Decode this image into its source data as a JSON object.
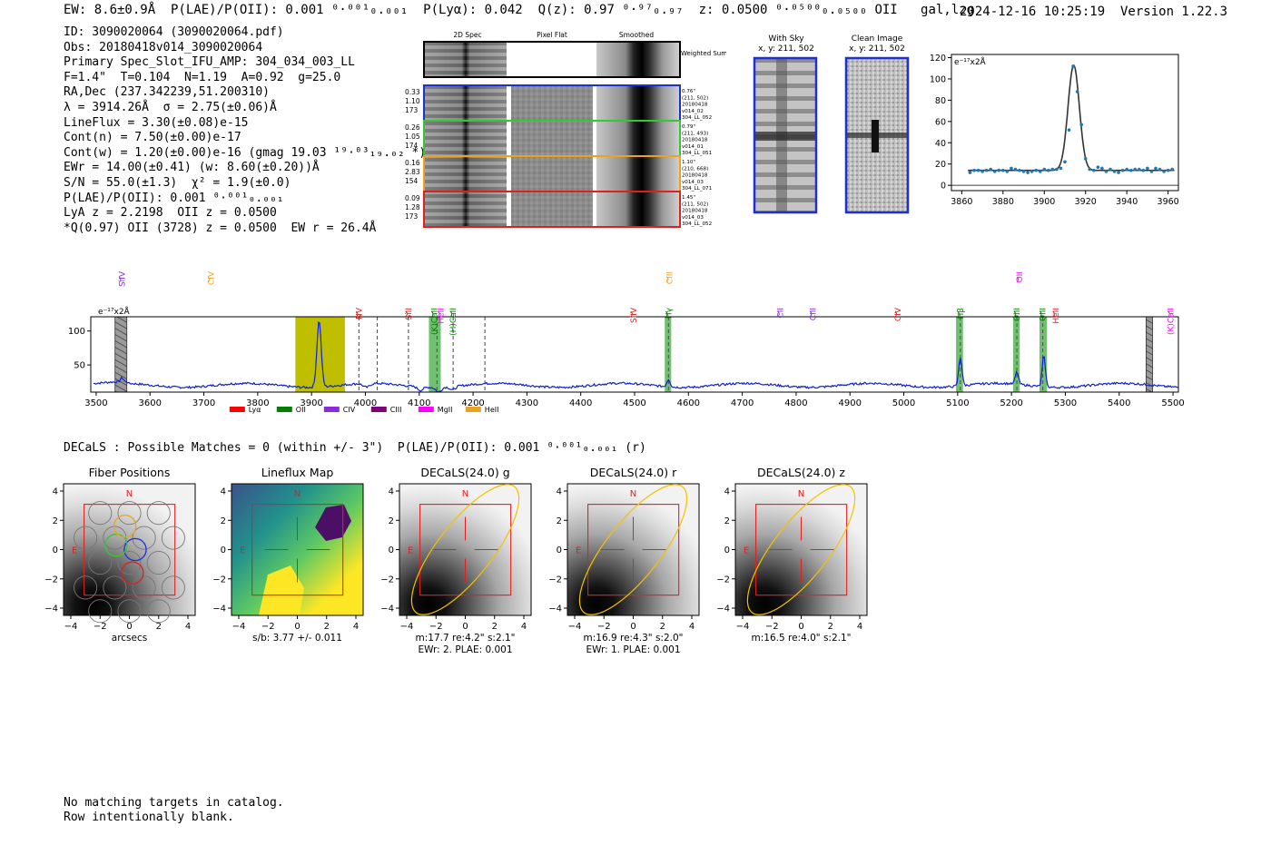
{
  "header": {
    "left": "EW: 8.6±0.9Å  P(LAE)/P(OII): 0.001 ⁰·⁰⁰¹₀.₀₀₁  P(Lyα): 0.042  Q(z): 0.97 ⁰·⁹⁷₀.₉₇  z: 0.0500 ⁰·⁰⁵⁰⁰₀.₀₅₀₀ OII   gal,lzg",
    "right": "2024-12-16 10:25:19  Version 1.22.3"
  },
  "info": [
    "ID: 3090020064 (3090020064.pdf)",
    "Obs: 20180418v014_3090020064",
    "Primary Spec_Slot_IFU_AMP: 304_034_003_LL",
    "F=1.4\"  T=0.104  N=1.19  A=0.92  g=25.0",
    "RA,Dec (237.342239,51.200310)",
    "λ = 3914.26Å  σ = 2.75(±0.06)Å",
    "LineFlux = 3.30(±0.08)e-15",
    "Cont(n) = 7.50(±0.00)e-17",
    "Cont(w) = 1.20(±0.00)e-16 (gmag 19.03 ¹⁹·⁰³₁₉.₀₂ *)",
    "EWr = 14.00(±0.41) (w: 8.60(±0.20))Å",
    "S/N = 55.0(±1.3)  χ² = 1.9(±0.0)",
    "P(LAE)/P(OII): 0.001 ⁰·⁰⁰¹₀.₀₀₁",
    "LyA z = 2.2198  OII z = 0.0500",
    "*Q(0.97) OII (3728) z = 0.0500  EW r = 26.4Å"
  ],
  "cutouts": {
    "col_labels": [
      "2D Spec",
      "Pixel Flat",
      "Smoothed"
    ],
    "weighted_label": "Weighted Sum",
    "rows": [
      {
        "color": "#1f2fd6",
        "left": [
          "0.33",
          "1.10",
          "173"
        ],
        "right": [
          "0.76\"",
          "(211, 502)",
          "20180418",
          "v014_02",
          "304_LL_052"
        ]
      },
      {
        "color": "#34c934",
        "left": [
          "0.26",
          "1.05",
          "174"
        ],
        "right": [
          "0.79\"",
          "(211, 493)",
          "20180418",
          "v014_01",
          "304_LL_051"
        ]
      },
      {
        "color": "#f0a020",
        "left": [
          "0.16",
          "2.83",
          "154"
        ],
        "right": [
          "1.10\"",
          "(210, 668)",
          "20180418",
          "v014_03",
          "304_LL_071"
        ]
      },
      {
        "color": "#e02020",
        "left": [
          "0.09",
          "1.28",
          "173"
        ],
        "right": [
          "1.45\"",
          "(211, 502)",
          "20180418",
          "v014_03",
          "304_LL_052"
        ]
      }
    ],
    "with_sky_title": "With Sky",
    "with_sky_sub": "x, y: 211, 502",
    "clean_title": "Clean Image",
    "clean_sub": "x, y: 211, 502"
  },
  "chart_data": [
    {
      "type": "line",
      "title": "",
      "ylabel_unit": "e⁻¹⁷x2Å",
      "xlim": [
        3855,
        3965
      ],
      "ylim": [
        -5,
        123
      ],
      "xticks": [
        3860,
        3880,
        3900,
        3920,
        3940,
        3960
      ],
      "yticks": [
        0,
        20,
        40,
        60,
        80,
        100,
        120
      ],
      "fit_center": 3914.26,
      "fit_sigma": 2.75,
      "fit_amp": 99,
      "fit_base": 14,
      "points_x": [
        3864,
        3866,
        3868,
        3870,
        3872,
        3874,
        3876,
        3878,
        3880,
        3882,
        3884,
        3886,
        3888,
        3890,
        3892,
        3894,
        3896,
        3898,
        3900,
        3902,
        3904,
        3906,
        3908,
        3910,
        3912,
        3914,
        3916,
        3918,
        3920,
        3922,
        3924,
        3926,
        3928,
        3930,
        3932,
        3934,
        3936,
        3938,
        3940,
        3942,
        3944,
        3946,
        3948,
        3950,
        3952,
        3954,
        3956,
        3958,
        3960,
        3962
      ],
      "points_y": [
        12,
        14,
        14,
        13,
        14,
        15,
        13,
        14,
        14,
        13,
        16,
        15,
        14,
        13,
        12,
        13,
        14,
        13,
        15,
        14,
        15,
        15,
        16,
        22,
        52,
        112,
        88,
        57,
        25,
        15,
        14,
        17,
        16,
        13,
        15,
        13,
        12,
        14,
        15,
        14,
        15,
        15,
        14,
        16,
        13,
        16,
        15,
        13,
        14,
        15
      ]
    },
    {
      "type": "line",
      "title": "",
      "ylabel_unit": "e⁻¹⁷x2Å",
      "xlim": [
        3490,
        5510
      ],
      "ylim": [
        10,
        121
      ],
      "xticks": [
        3500,
        3600,
        3700,
        3800,
        3900,
        4000,
        4100,
        4200,
        4300,
        4400,
        4500,
        4600,
        4700,
        4800,
        4900,
        5000,
        5100,
        5200,
        5300,
        5400,
        5500
      ],
      "yticks": [
        50,
        100
      ],
      "baseline": 20,
      "peaks": [
        {
          "x": 3914,
          "h": 98,
          "w": 4
        },
        {
          "x": 3548,
          "h": 6,
          "w": 3
        },
        {
          "x": 4002,
          "h": -6,
          "w": 6
        },
        {
          "x": 4102,
          "h": -5,
          "w": 5
        },
        {
          "x": 4136,
          "h": -7,
          "w": 5
        },
        {
          "x": 4162,
          "h": -5,
          "w": 5
        },
        {
          "x": 4563,
          "h": 11,
          "w": 3
        },
        {
          "x": 5105,
          "h": 42,
          "w": 3
        },
        {
          "x": 5210,
          "h": 18,
          "w": 3
        },
        {
          "x": 5260,
          "h": 45,
          "w": 3
        }
      ],
      "highlight": {
        "x0": 3870,
        "x1": 3962,
        "color": "#bfbf00"
      },
      "bands": [
        {
          "x0": 4118,
          "x1": 4140,
          "color": "#62b862"
        },
        {
          "x0": 4556,
          "x1": 4568,
          "color": "#62b862"
        },
        {
          "x0": 5097,
          "x1": 5110,
          "color": "#62b862"
        },
        {
          "x0": 5203,
          "x1": 5215,
          "color": "#62b862"
        },
        {
          "x0": 5252,
          "x1": 5266,
          "color": "#62b862"
        }
      ],
      "hatched": [
        {
          "x0": 3535,
          "x1": 3557
        },
        {
          "x0": 5450,
          "x1": 5462
        }
      ],
      "dashed": [
        3988,
        4022,
        4080,
        4133,
        4163,
        4222,
        4563,
        5105,
        5210,
        5258
      ],
      "lines": [
        {
          "x": 3548,
          "label": "SiIV",
          "color": "#8a2be2",
          "top": true
        },
        {
          "x": 3713,
          "label": "CIV",
          "color": "#f0a020",
          "top": true
        },
        {
          "x": 3988,
          "label": "NV",
          "color": "#e02020",
          "top": false
        },
        {
          "x": 4080,
          "label": "SiII",
          "color": "#e02020",
          "top": false
        },
        {
          "x": 4128,
          "label": "(K)CaII",
          "color": "#008000",
          "top": false
        },
        {
          "x": 4140,
          "label": "HeII",
          "color": "#ff00ff",
          "top": false
        },
        {
          "x": 4163,
          "label": "(H)CaII",
          "color": "#008000",
          "top": false
        },
        {
          "x": 4498,
          "label": "SiIV",
          "color": "#e02020",
          "top": false
        },
        {
          "x": 4563,
          "label": "Hγ",
          "color": "#008000",
          "top": false
        },
        {
          "x": 4565,
          "label": "CIII",
          "color": "#f0a020",
          "top": true
        },
        {
          "x": 4771,
          "label": "CII",
          "color": "#8a2be2",
          "top": false
        },
        {
          "x": 4831,
          "label": "CIII",
          "color": "#8a2be2",
          "top": false
        },
        {
          "x": 4989,
          "label": "CIV",
          "color": "#e02020",
          "top": false
        },
        {
          "x": 5105,
          "label": "Hβ",
          "color": "#008000",
          "top": false
        },
        {
          "x": 5210,
          "label": "OIII",
          "color": "#008000",
          "top": false
        },
        {
          "x": 5215,
          "label": "OII",
          "color": "#ff00ff",
          "top": true
        },
        {
          "x": 5258,
          "label": "OIII",
          "color": "#008000",
          "top": false
        },
        {
          "x": 5282,
          "label": "HeII",
          "color": "#e02020",
          "top": false
        },
        {
          "x": 5496,
          "label": "(K)CaII",
          "color": "#ff00ff",
          "top": false
        }
      ],
      "legend": [
        {
          "label": "Lyα",
          "color": "#ff0000"
        },
        {
          "label": "OII",
          "color": "#008000"
        },
        {
          "label": "CIV",
          "color": "#8a2be2"
        },
        {
          "label": "CIII",
          "color": "#800080"
        },
        {
          "label": "MgII",
          "color": "#ff00ff"
        },
        {
          "label": "HeII",
          "color": "#f0a020"
        }
      ]
    }
  ],
  "decals": {
    "header": "DECaLS : Possible Matches = 0 (within +/- 3\")  P(LAE)/P(OII): 0.001 ⁰·⁰⁰¹₀.₀₀₁ (r)",
    "panels": [
      {
        "title": "Fiber Positions",
        "caption1": "arcsecs",
        "caption2": ""
      },
      {
        "title": "Lineflux Map",
        "caption1": "s/b: 3.77 +/- 0.011",
        "caption2": ""
      },
      {
        "title": "DECaLS(24.0) g",
        "caption1": "m:17.7  re:4.2\"  s:2.1\"",
        "caption2": "EWr: 2. PLAE: 0.001"
      },
      {
        "title": "DECaLS(24.0) r",
        "caption1": "m:16.9  re:4.3\"  s:2.0\"",
        "caption2": "EWr: 1. PLAE: 0.001"
      },
      {
        "title": "DECaLS(24.0) z",
        "caption1": "m:16.5  re:4.0\"  s:2.1\"",
        "caption2": ""
      }
    ],
    "ticks": [
      "−4",
      "−2",
      "0",
      "2",
      "4"
    ],
    "north": "N",
    "east": "E"
  },
  "footer": [
    "No matching targets in catalog.",
    "Row intentionally blank."
  ]
}
